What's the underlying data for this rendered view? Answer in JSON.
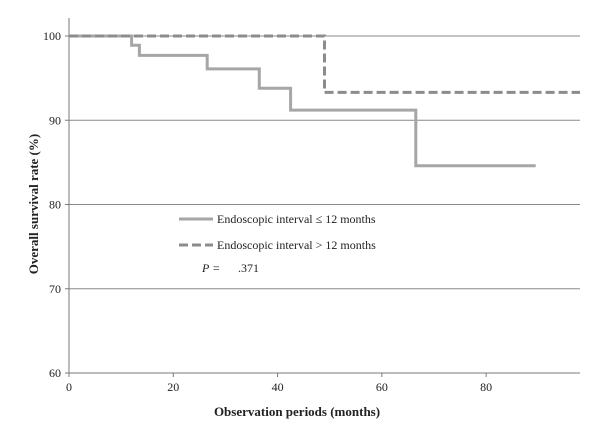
{
  "chart_data": {
    "type": "line",
    "title": "",
    "xlabel": "Observation periods (months)",
    "ylabel": "Overall survival rate (%)",
    "xlim": [
      0,
      98
    ],
    "ylim": [
      60,
      102
    ],
    "x_ticks": [
      0,
      20,
      40,
      60,
      80
    ],
    "y_ticks": [
      60,
      70,
      80,
      90,
      100
    ],
    "grid": "horizontal",
    "series": [
      {
        "name": "Endoscopic interval ≤ 12 months",
        "style": "solid",
        "color": "#a6a6a6",
        "step": true,
        "points": [
          [
            0,
            100
          ],
          [
            12,
            100
          ],
          [
            12,
            98.9
          ],
          [
            13.5,
            98.9
          ],
          [
            13.5,
            97.7
          ],
          [
            26.5,
            97.7
          ],
          [
            26.5,
            96.1
          ],
          [
            36.5,
            96.1
          ],
          [
            36.5,
            93.8
          ],
          [
            42.5,
            93.8
          ],
          [
            42.5,
            91.2
          ],
          [
            44.5,
            91.2
          ],
          [
            66.5,
            91.2
          ],
          [
            66.5,
            84.6
          ],
          [
            89.5,
            84.6
          ]
        ]
      },
      {
        "name": "Endoscopic interval > 12 months",
        "style": "dashed",
        "color": "#8c8c8c",
        "step": true,
        "points": [
          [
            0,
            100
          ],
          [
            49,
            100
          ],
          [
            49,
            93.3
          ],
          [
            98,
            93.3
          ]
        ]
      }
    ],
    "annotation": {
      "p_label": "P =",
      "p_value": ".371"
    }
  }
}
